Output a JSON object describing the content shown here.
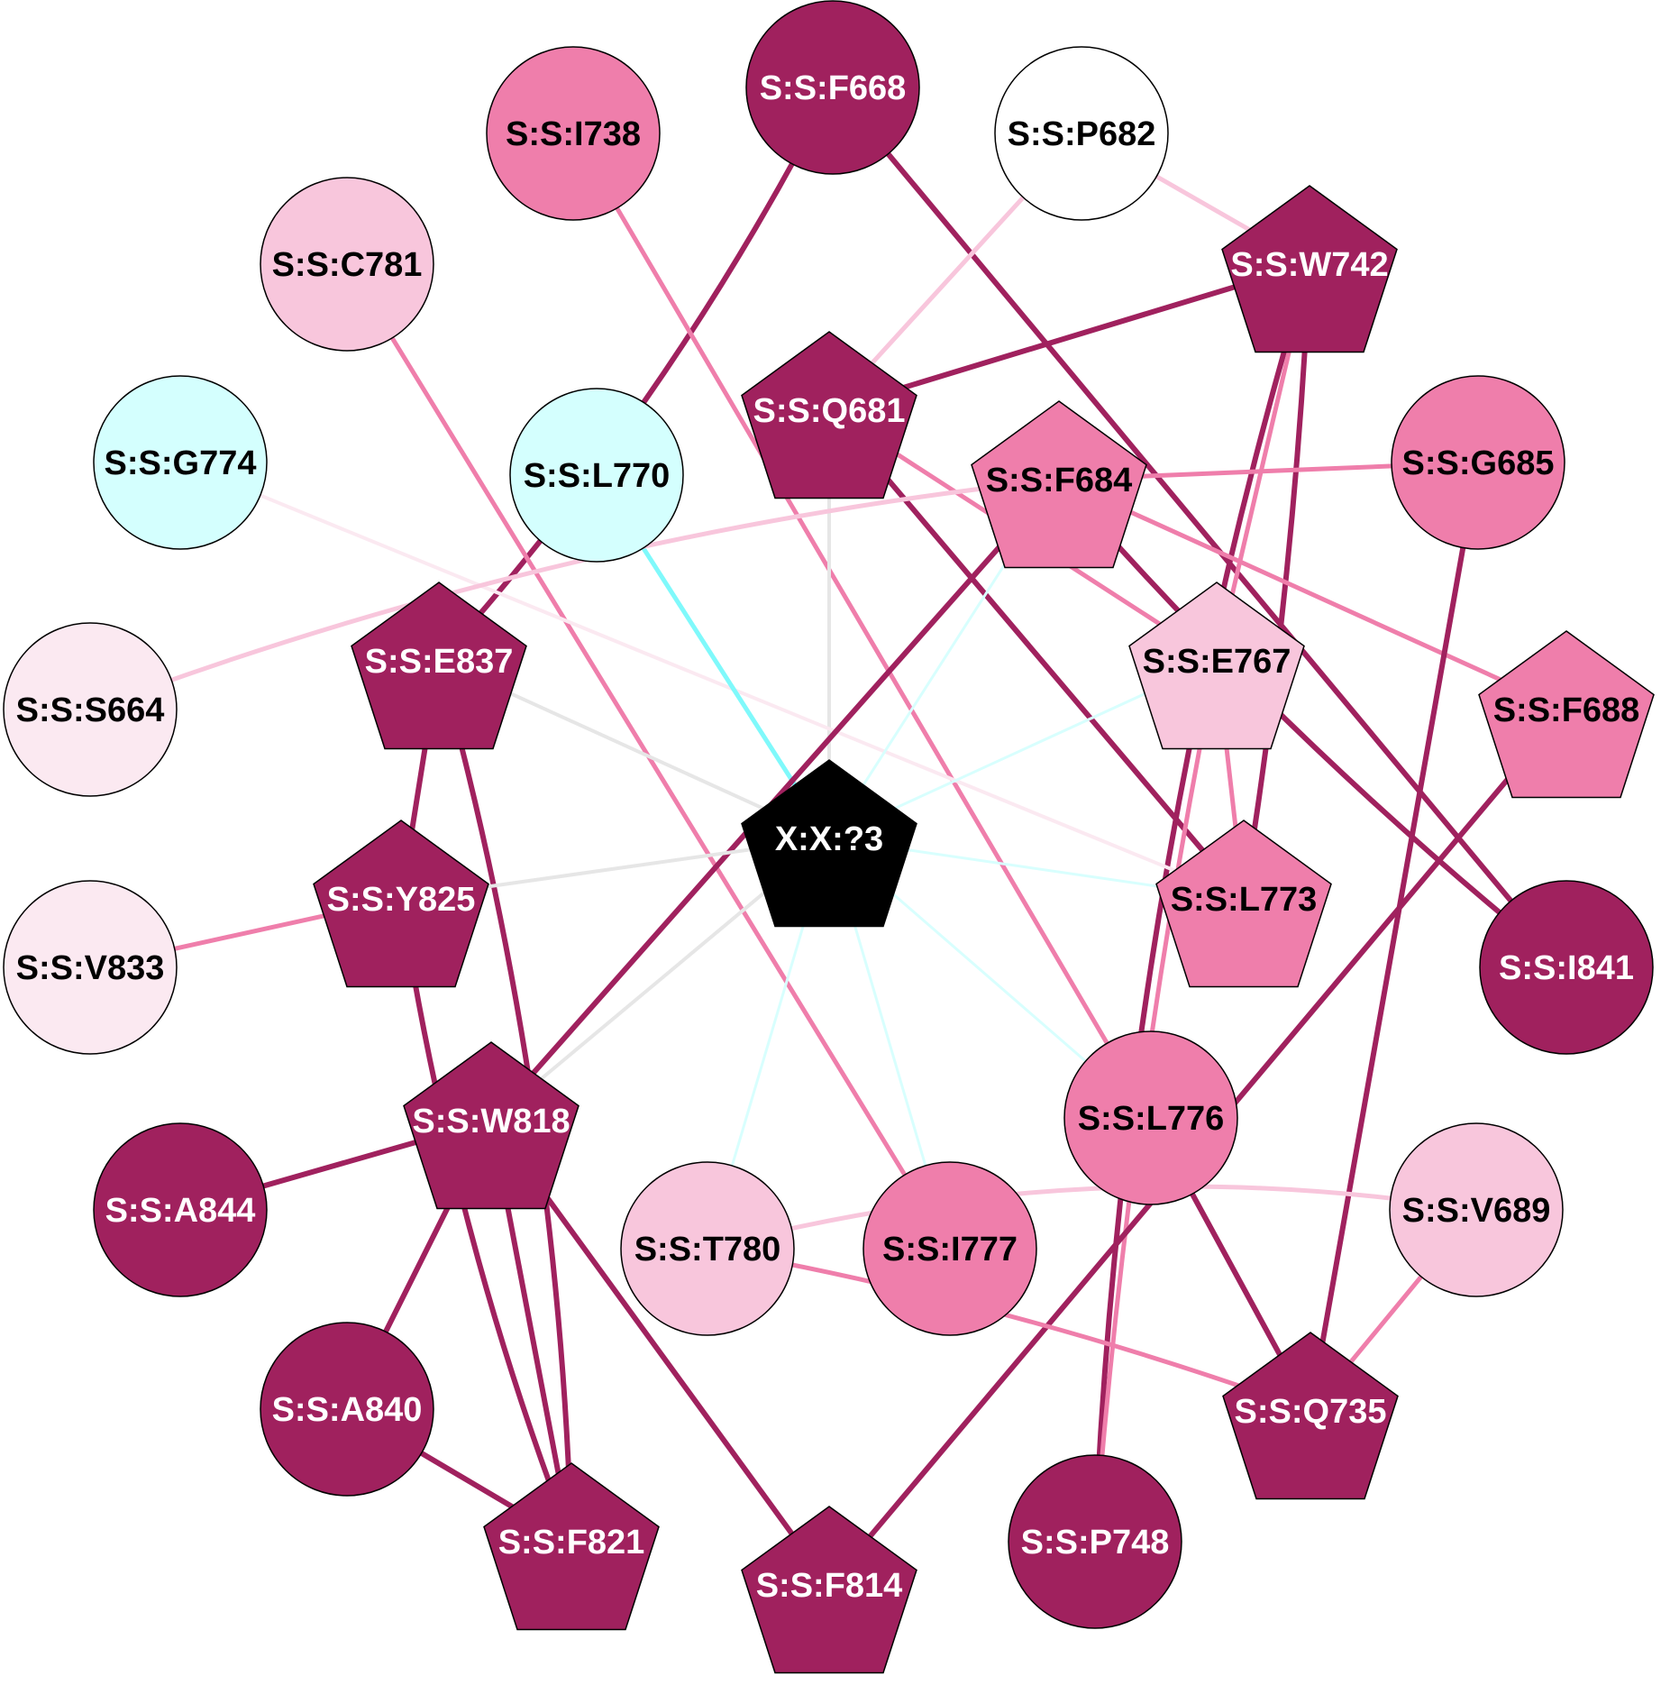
{
  "colors": {
    "dark": "#a0215e",
    "medium": "#ef7eab",
    "light": "#f8c6dc",
    "very_light": "#fbe9f1",
    "cyan": "#d4fffe",
    "center": "#000000",
    "white": "#ffffff",
    "edge_gray": "#e6e6e6",
    "edge_cyan": "#7ff9fb",
    "edge_cyan_faint": "#d8fffe"
  },
  "nodes": [
    {
      "id": "S:S:F668",
      "shape": "circle",
      "fill": "dark",
      "text": "white"
    },
    {
      "id": "S:S:I738",
      "shape": "circle",
      "fill": "medium",
      "text": "black"
    },
    {
      "id": "S:S:P682",
      "shape": "circle",
      "fill": "white",
      "text": "black"
    },
    {
      "id": "S:S:C781",
      "shape": "circle",
      "fill": "light",
      "text": "black"
    },
    {
      "id": "S:S:W742",
      "shape": "pentagon",
      "fill": "dark",
      "text": "white"
    },
    {
      "id": "S:S:Q681",
      "shape": "pentagon",
      "fill": "dark",
      "text": "white"
    },
    {
      "id": "S:S:G774",
      "shape": "circle",
      "fill": "cyan",
      "text": "black"
    },
    {
      "id": "S:S:L770",
      "shape": "circle",
      "fill": "cyan",
      "text": "black"
    },
    {
      "id": "S:S:F684",
      "shape": "pentagon",
      "fill": "medium",
      "text": "black"
    },
    {
      "id": "S:S:G685",
      "shape": "circle",
      "fill": "medium",
      "text": "black"
    },
    {
      "id": "S:S:E837",
      "shape": "pentagon",
      "fill": "dark",
      "text": "white"
    },
    {
      "id": "S:S:E767",
      "shape": "pentagon",
      "fill": "light",
      "text": "black"
    },
    {
      "id": "S:S:S664",
      "shape": "circle",
      "fill": "very_light",
      "text": "black"
    },
    {
      "id": "S:S:F688",
      "shape": "pentagon",
      "fill": "medium",
      "text": "black"
    },
    {
      "id": "X:X:?3",
      "shape": "pentagon",
      "fill": "center",
      "text": "white"
    },
    {
      "id": "S:S:Y825",
      "shape": "pentagon",
      "fill": "dark",
      "text": "white"
    },
    {
      "id": "S:S:L773",
      "shape": "pentagon",
      "fill": "medium",
      "text": "black"
    },
    {
      "id": "S:S:V833",
      "shape": "circle",
      "fill": "very_light",
      "text": "black"
    },
    {
      "id": "S:S:I841",
      "shape": "circle",
      "fill": "dark",
      "text": "white"
    },
    {
      "id": "S:S:W818",
      "shape": "pentagon",
      "fill": "dark",
      "text": "white"
    },
    {
      "id": "S:S:L776",
      "shape": "circle",
      "fill": "medium",
      "text": "black"
    },
    {
      "id": "S:S:A844",
      "shape": "circle",
      "fill": "dark",
      "text": "white"
    },
    {
      "id": "S:S:T780",
      "shape": "circle",
      "fill": "light",
      "text": "black"
    },
    {
      "id": "S:S:I777",
      "shape": "circle",
      "fill": "medium",
      "text": "black"
    },
    {
      "id": "S:S:V689",
      "shape": "circle",
      "fill": "light",
      "text": "black"
    },
    {
      "id": "S:S:A840",
      "shape": "circle",
      "fill": "dark",
      "text": "white"
    },
    {
      "id": "S:S:Q735",
      "shape": "pentagon",
      "fill": "dark",
      "text": "white"
    },
    {
      "id": "S:S:F821",
      "shape": "pentagon",
      "fill": "dark",
      "text": "white"
    },
    {
      "id": "S:S:F814",
      "shape": "pentagon",
      "fill": "dark",
      "text": "white"
    },
    {
      "id": "S:S:P748",
      "shape": "circle",
      "fill": "dark",
      "text": "white"
    }
  ],
  "edges": [
    {
      "from": "S:S:F668",
      "to": "S:S:E837",
      "color": "dark"
    },
    {
      "from": "S:S:F668",
      "to": "S:S:I841",
      "color": "dark"
    },
    {
      "from": "S:S:I738",
      "to": "S:S:L776",
      "color": "medium"
    },
    {
      "from": "S:S:P682",
      "to": "S:S:Q681",
      "color": "light"
    },
    {
      "from": "S:S:P682",
      "to": "S:S:W742",
      "color": "light"
    },
    {
      "from": "S:S:C781",
      "to": "S:S:I777",
      "color": "medium"
    },
    {
      "from": "S:S:W742",
      "to": "S:S:Q681",
      "color": "dark"
    },
    {
      "from": "S:S:W742",
      "to": "S:S:P748",
      "color": "dark"
    },
    {
      "from": "S:S:W742",
      "to": "S:S:L773",
      "color": "dark"
    },
    {
      "from": "S:S:W742",
      "to": "S:S:E767",
      "color": "medium"
    },
    {
      "from": "S:S:Q681",
      "to": "S:S:L773",
      "color": "dark"
    },
    {
      "from": "S:S:Q681",
      "to": "S:S:E767",
      "color": "medium"
    },
    {
      "from": "S:S:Q681",
      "to": "X:X:?3",
      "color": "edge_gray"
    },
    {
      "from": "S:S:G774",
      "to": "S:S:L773",
      "color": "very_light"
    },
    {
      "from": "S:S:L770",
      "to": "X:X:?3",
      "color": "edge_cyan"
    },
    {
      "from": "S:S:F684",
      "to": "S:S:G685",
      "color": "medium"
    },
    {
      "from": "S:S:F684",
      "to": "S:S:F688",
      "color": "medium"
    },
    {
      "from": "S:S:F684",
      "to": "S:S:I841",
      "color": "dark"
    },
    {
      "from": "S:S:F684",
      "to": "S:S:W818",
      "color": "dark"
    },
    {
      "from": "S:S:F684",
      "to": "S:S:S664",
      "color": "light"
    },
    {
      "from": "S:S:F684",
      "to": "X:X:?3",
      "color": "edge_cyan_faint"
    },
    {
      "from": "S:S:G685",
      "to": "S:S:Q735",
      "color": "dark"
    },
    {
      "from": "S:S:E837",
      "to": "S:S:Y825",
      "color": "dark"
    },
    {
      "from": "S:S:E837",
      "to": "S:S:F821",
      "color": "dark"
    },
    {
      "from": "S:S:E837",
      "to": "X:X:?3",
      "color": "edge_gray"
    },
    {
      "from": "S:S:E767",
      "to": "S:S:L773",
      "color": "medium"
    },
    {
      "from": "S:S:E767",
      "to": "S:S:P748",
      "color": "medium"
    },
    {
      "from": "S:S:E767",
      "to": "X:X:?3",
      "color": "edge_cyan_faint"
    },
    {
      "from": "S:S:F688",
      "to": "S:S:F814",
      "color": "dark"
    },
    {
      "from": "X:X:?3",
      "to": "S:S:Y825",
      "color": "edge_gray"
    },
    {
      "from": "X:X:?3",
      "to": "S:S:W818",
      "color": "edge_gray"
    },
    {
      "from": "X:X:?3",
      "to": "S:S:L773",
      "color": "edge_cyan_faint"
    },
    {
      "from": "X:X:?3",
      "to": "S:S:L776",
      "color": "edge_cyan_faint"
    },
    {
      "from": "X:X:?3",
      "to": "S:S:T780",
      "color": "edge_cyan_faint"
    },
    {
      "from": "X:X:?3",
      "to": "S:S:I777",
      "color": "edge_cyan_faint"
    },
    {
      "from": "S:S:Y825",
      "to": "S:S:V833",
      "color": "medium"
    },
    {
      "from": "S:S:Y825",
      "to": "S:S:F821",
      "color": "dark"
    },
    {
      "from": "S:S:W818",
      "to": "S:S:A844",
      "color": "dark"
    },
    {
      "from": "S:S:W818",
      "to": "S:S:A840",
      "color": "dark"
    },
    {
      "from": "S:S:W818",
      "to": "S:S:F821",
      "color": "dark"
    },
    {
      "from": "S:S:W818",
      "to": "S:S:F814",
      "color": "dark"
    },
    {
      "from": "S:S:L776",
      "to": "S:S:Q735",
      "color": "dark"
    },
    {
      "from": "S:S:T780",
      "to": "S:S:Q735",
      "color": "medium"
    },
    {
      "from": "S:S:T780",
      "to": "S:S:V689",
      "color": "light"
    },
    {
      "from": "S:S:V689",
      "to": "S:S:Q735",
      "color": "medium"
    },
    {
      "from": "S:S:A840",
      "to": "S:S:F821",
      "color": "dark"
    }
  ]
}
